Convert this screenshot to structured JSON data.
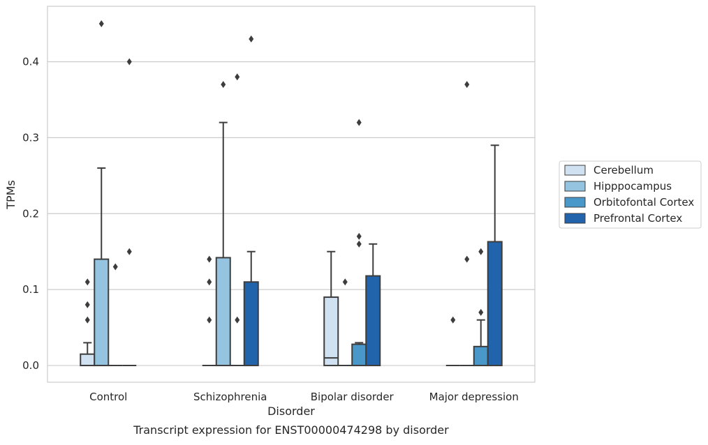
{
  "chart_data": {
    "type": "box",
    "title": "",
    "caption": "Transcript expression for ENST00000474298 by disorder",
    "xlabel": "Disorder",
    "ylabel": "TPMs",
    "ylim": [
      -0.022,
      0.473
    ],
    "yticks": [
      0.0,
      0.1,
      0.2,
      0.3,
      0.4
    ],
    "ytick_labels": [
      "0.0",
      "0.1",
      "0.2",
      "0.3",
      "0.4"
    ],
    "grid": "horizontal",
    "legend_position": "right",
    "categories": [
      "Control",
      "Schizophrenia",
      "Bipolar disorder",
      "Major depression"
    ],
    "series": [
      {
        "name": "Cerebellum",
        "color": "#d0e1f2",
        "boxes": [
          {
            "q1": 0.0,
            "median": 0.0,
            "q3": 0.015,
            "whislo": 0.0,
            "whishi": 0.03,
            "fliers": [
              0.06,
              0.08,
              0.11
            ]
          },
          {
            "q1": 0.0,
            "median": 0.0,
            "q3": 0.0,
            "whislo": 0.0,
            "whishi": 0.0,
            "fliers": [
              0.06,
              0.11,
              0.14
            ]
          },
          {
            "q1": 0.0,
            "median": 0.01,
            "q3": 0.09,
            "whislo": 0.0,
            "whishi": 0.15,
            "fliers": []
          },
          {
            "q1": 0.0,
            "median": 0.0,
            "q3": 0.0,
            "whislo": 0.0,
            "whishi": 0.0,
            "fliers": [
              0.06
            ]
          }
        ]
      },
      {
        "name": "Hipppocampus",
        "color": "#94c4df",
        "boxes": [
          {
            "q1": 0.0,
            "median": 0.0,
            "q3": 0.14,
            "whislo": 0.0,
            "whishi": 0.26,
            "fliers": [
              0.45
            ]
          },
          {
            "q1": 0.0,
            "median": 0.0,
            "q3": 0.142,
            "whislo": 0.0,
            "whishi": 0.32,
            "fliers": [
              0.37
            ]
          },
          {
            "q1": 0.0,
            "median": 0.0,
            "q3": 0.0,
            "whislo": 0.0,
            "whishi": 0.0,
            "fliers": [
              0.11
            ]
          },
          {
            "q1": 0.0,
            "median": 0.0,
            "q3": 0.0,
            "whislo": 0.0,
            "whishi": 0.0,
            "fliers": [
              0.14,
              0.37
            ]
          }
        ]
      },
      {
        "name": "Orbitofontal Cortex",
        "color": "#4a98c9",
        "boxes": [
          {
            "q1": 0.0,
            "median": 0.0,
            "q3": 0.0,
            "whislo": 0.0,
            "whishi": 0.0,
            "fliers": [
              0.13
            ]
          },
          {
            "q1": 0.0,
            "median": 0.0,
            "q3": 0.0,
            "whislo": 0.0,
            "whishi": 0.0,
            "fliers": [
              0.06,
              0.38
            ]
          },
          {
            "q1": 0.0,
            "median": 0.0,
            "q3": 0.028,
            "whislo": 0.0,
            "whishi": 0.03,
            "fliers": [
              0.16,
              0.17,
              0.32
            ]
          },
          {
            "q1": 0.0,
            "median": 0.0,
            "q3": 0.025,
            "whislo": 0.0,
            "whishi": 0.06,
            "fliers": [
              0.07,
              0.15
            ]
          }
        ]
      },
      {
        "name": "Prefrontal Cortex",
        "color": "#2164ab",
        "boxes": [
          {
            "q1": 0.0,
            "median": 0.0,
            "q3": 0.0,
            "whislo": 0.0,
            "whishi": 0.0,
            "fliers": [
              0.15,
              0.4
            ]
          },
          {
            "q1": 0.0,
            "median": 0.0,
            "q3": 0.11,
            "whislo": 0.0,
            "whishi": 0.15,
            "fliers": [
              0.43
            ]
          },
          {
            "q1": 0.0,
            "median": 0.0,
            "q3": 0.118,
            "whislo": 0.0,
            "whishi": 0.16,
            "fliers": []
          },
          {
            "q1": 0.0,
            "median": 0.0,
            "q3": 0.163,
            "whislo": 0.0,
            "whishi": 0.29,
            "fliers": []
          }
        ]
      }
    ]
  }
}
